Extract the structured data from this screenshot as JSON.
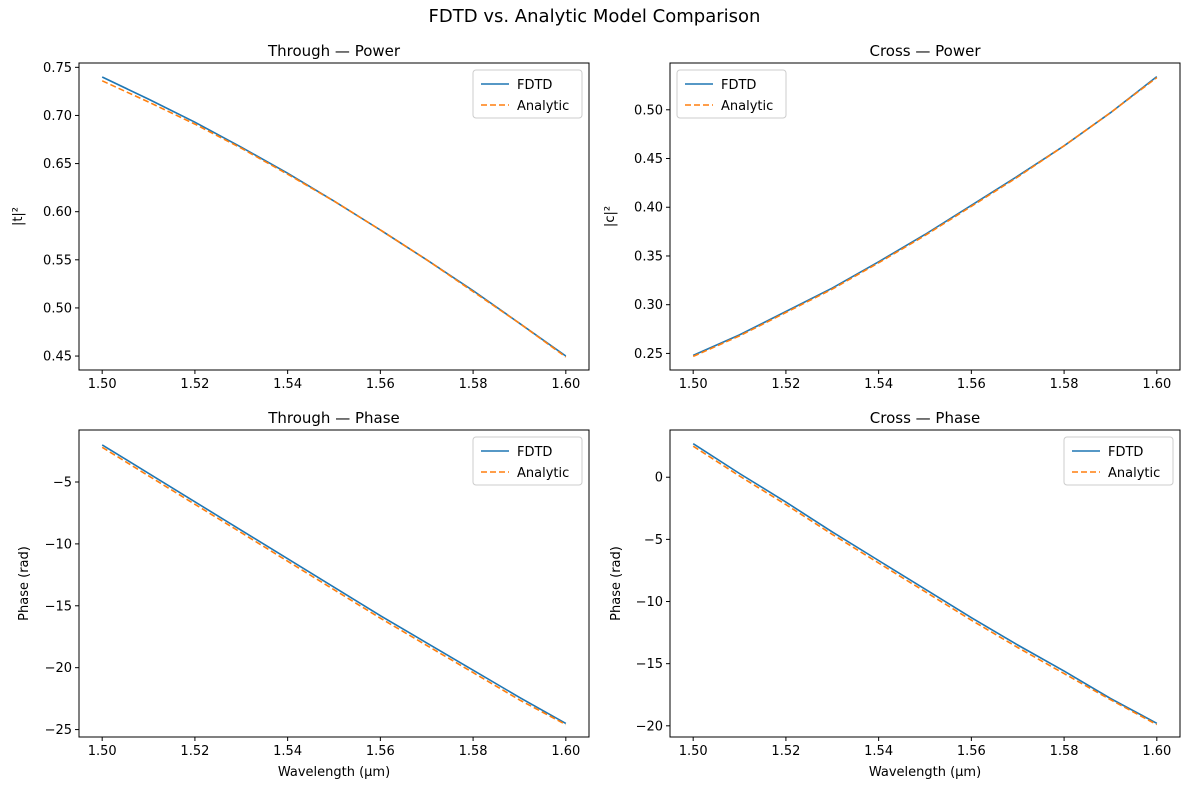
{
  "title": "FDTD vs. Analytic Model Comparison",
  "colors": {
    "fdtd": "#1f77b4",
    "analytic": "#ff7f0e"
  },
  "chart_data": [
    {
      "type": "line",
      "title": "Through — Power",
      "xlabel": "",
      "ylabel": "|t|²",
      "xlim": [
        1.495,
        1.605
      ],
      "ylim": [
        0.4355,
        0.7545
      ],
      "xticks": [
        1.5,
        1.52,
        1.54,
        1.56,
        1.58,
        1.6
      ],
      "xtick_labels": [
        "1.50",
        "1.52",
        "1.54",
        "1.56",
        "1.58",
        "1.60"
      ],
      "yticks": [
        0.45,
        0.5,
        0.55,
        0.6,
        0.65,
        0.7,
        0.75
      ],
      "ytick_labels": [
        "0.45",
        "0.50",
        "0.55",
        "0.60",
        "0.65",
        "0.70",
        "0.75"
      ],
      "legend": "top-right",
      "x": [
        1.5,
        1.51,
        1.52,
        1.53,
        1.54,
        1.55,
        1.56,
        1.57,
        1.58,
        1.59,
        1.6
      ],
      "series": [
        {
          "name": "FDTD",
          "style": "solid",
          "values": [
            0.74,
            0.717,
            0.693,
            0.667,
            0.64,
            0.611,
            0.581,
            0.55,
            0.518,
            0.484,
            0.45
          ]
        },
        {
          "name": "Analytic",
          "style": "dashed",
          "values": [
            0.736,
            0.714,
            0.691,
            0.666,
            0.639,
            0.611,
            0.581,
            0.55,
            0.517,
            0.484,
            0.449
          ]
        }
      ]
    },
    {
      "type": "line",
      "title": "Cross — Power",
      "xlabel": "",
      "ylabel": "|c|²",
      "xlim": [
        1.495,
        1.605
      ],
      "ylim": [
        0.233,
        0.548
      ],
      "xticks": [
        1.5,
        1.52,
        1.54,
        1.56,
        1.58,
        1.6
      ],
      "xtick_labels": [
        "1.50",
        "1.52",
        "1.54",
        "1.56",
        "1.58",
        "1.60"
      ],
      "yticks": [
        0.25,
        0.3,
        0.35,
        0.4,
        0.45,
        0.5
      ],
      "ytick_labels": [
        "0.25",
        "0.30",
        "0.35",
        "0.40",
        "0.45",
        "0.50"
      ],
      "legend": "top-left",
      "x": [
        1.5,
        1.51,
        1.52,
        1.53,
        1.54,
        1.55,
        1.56,
        1.57,
        1.58,
        1.59,
        1.6
      ],
      "series": [
        {
          "name": "FDTD",
          "style": "solid",
          "values": [
            0.248,
            0.269,
            0.293,
            0.317,
            0.344,
            0.372,
            0.402,
            0.432,
            0.463,
            0.497,
            0.534
          ]
        },
        {
          "name": "Analytic",
          "style": "dashed",
          "values": [
            0.247,
            0.268,
            0.292,
            0.316,
            0.343,
            0.371,
            0.401,
            0.431,
            0.463,
            0.497,
            0.533
          ]
        }
      ]
    },
    {
      "type": "line",
      "title": "Through — Phase",
      "xlabel": "Wavelength (µm)",
      "ylabel": "Phase (rad)",
      "xlim": [
        1.495,
        1.605
      ],
      "ylim": [
        -25.6,
        -0.8
      ],
      "xticks": [
        1.5,
        1.52,
        1.54,
        1.56,
        1.58,
        1.6
      ],
      "xtick_labels": [
        "1.50",
        "1.52",
        "1.54",
        "1.56",
        "1.58",
        "1.60"
      ],
      "yticks": [
        -25,
        -20,
        -15,
        -10,
        -5
      ],
      "ytick_labels": [
        "−25",
        "−20",
        "−15",
        "−10",
        "−5"
      ],
      "legend": "top-right",
      "x": [
        1.5,
        1.51,
        1.52,
        1.53,
        1.54,
        1.55,
        1.56,
        1.57,
        1.58,
        1.59,
        1.6
      ],
      "series": [
        {
          "name": "FDTD",
          "style": "solid",
          "values": [
            -2.0,
            -4.3,
            -6.6,
            -8.9,
            -11.2,
            -13.5,
            -15.8,
            -18.0,
            -20.2,
            -22.4,
            -24.5
          ]
        },
        {
          "name": "Analytic",
          "style": "dashed",
          "values": [
            -2.2,
            -4.5,
            -6.8,
            -9.1,
            -11.4,
            -13.7,
            -16.0,
            -18.2,
            -20.4,
            -22.6,
            -24.6
          ]
        }
      ]
    },
    {
      "type": "line",
      "title": "Cross — Phase",
      "xlabel": "Wavelength (µm)",
      "ylabel": "Phase (rad)",
      "xlim": [
        1.495,
        1.605
      ],
      "ylim": [
        -20.9,
        3.8
      ],
      "xticks": [
        1.5,
        1.52,
        1.54,
        1.56,
        1.58,
        1.6
      ],
      "xtick_labels": [
        "1.50",
        "1.52",
        "1.54",
        "1.56",
        "1.58",
        "1.60"
      ],
      "yticks": [
        -20,
        -15,
        -10,
        -5,
        0
      ],
      "ytick_labels": [
        "−20",
        "−15",
        "−10",
        "−5",
        "0"
      ],
      "legend": "top-right",
      "x": [
        1.5,
        1.51,
        1.52,
        1.53,
        1.54,
        1.55,
        1.56,
        1.57,
        1.58,
        1.59,
        1.6
      ],
      "series": [
        {
          "name": "FDTD",
          "style": "solid",
          "values": [
            2.7,
            0.3,
            -2.0,
            -4.4,
            -6.7,
            -9.0,
            -11.3,
            -13.5,
            -15.6,
            -17.8,
            -19.8
          ]
        },
        {
          "name": "Analytic",
          "style": "dashed",
          "values": [
            2.5,
            0.1,
            -2.2,
            -4.6,
            -6.9,
            -9.2,
            -11.5,
            -13.7,
            -15.8,
            -17.9,
            -19.9
          ]
        }
      ]
    }
  ]
}
